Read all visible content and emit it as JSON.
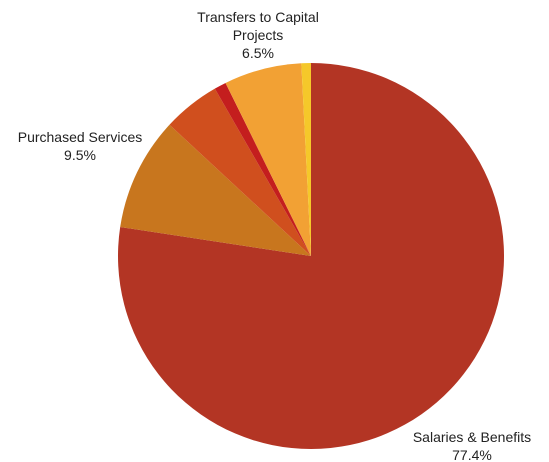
{
  "chart_data": {
    "type": "pie",
    "categories": [
      "Salaries & Benefits",
      "Purchased Services",
      null,
      null,
      "Transfers to Capital Projects",
      null
    ],
    "values": [
      77.4,
      9.5,
      4.8,
      1.0,
      6.5,
      0.8
    ],
    "value_labels": [
      "77.4%",
      "9.5%",
      null,
      null,
      "6.5%",
      null
    ],
    "colors": [
      "#b33524",
      "#c8761e",
      "#d04f1e",
      "#c41e1e",
      "#f2a134",
      "#f5c82a"
    ]
  }
}
